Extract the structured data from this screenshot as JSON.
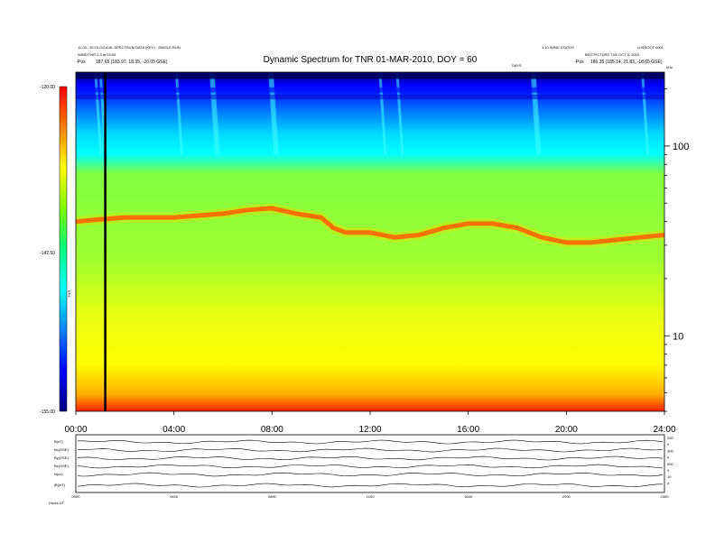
{
  "header": {
    "title": "Dynamic Spectrum for TNR 01-MAR-2010, DOY = 60",
    "left_line1": "11-03 - ECOLOGICAL SPECTRUM DATA (KEV) - SINGLE RUN",
    "left_line2": "WIND/TNR 2.3 at 03:00",
    "left_pos_label": "Pos",
    "left_pos_value": "187.65 (183.97, 18.35, -20.05 GSE)",
    "right_line1": "1.10 WIND STATUS",
    "right_line2": "BEG PICTURE TUE OCT 5, 2010",
    "right_corner": "LUSROOT 0001",
    "right_pos_label": "Pos",
    "right_pos_value": "186.35 (185.14, 21.83, -18.65 GSE)",
    "mid_small": "DAYS",
    "hz_label": "kHz"
  },
  "colorbar": {
    "top_label": "-120.00",
    "mid_label": "-142.50",
    "bottom_label": "-155.00",
    "unit_label": "TNR",
    "stops": [
      "#ff0000",
      "#ff8000",
      "#ffff00",
      "#80ff00",
      "#00ff80",
      "#00ffff",
      "#0080ff",
      "#0000ff",
      "#000080"
    ]
  },
  "chart_data": {
    "type": "heatmap",
    "title": "Dynamic Spectrum for TNR 01-MAR-2010, DOY = 60",
    "x_ticks": [
      "00:00",
      "04:00",
      "08:00",
      "12:00",
      "16:00",
      "20:00",
      "24:00"
    ],
    "x_range_hours": [
      0,
      24
    ],
    "y_scale": "log",
    "y_unit": "kHz",
    "y_ticks": [
      100,
      10
    ],
    "y_range_khz": [
      4,
      245
    ],
    "color_range_db": [
      -155.0,
      -120.0
    ],
    "plasma_line_khz_by_hour": {
      "hours": [
        0,
        1,
        2,
        3,
        4,
        5,
        6,
        7,
        8,
        9,
        10,
        10.5,
        11,
        12,
        13,
        14,
        15,
        16,
        17,
        18,
        19,
        20,
        21,
        22,
        23,
        24
      ],
      "khz": [
        40,
        41,
        42,
        42,
        42,
        43,
        44,
        46,
        47,
        44,
        42,
        37,
        35,
        35,
        33,
        34,
        37,
        39,
        39,
        37,
        33,
        31,
        31,
        32,
        33,
        34
      ]
    },
    "marker_hour": 1.2,
    "grid": false
  },
  "bottom_panel": {
    "row_labels": [
      "B(nT)",
      "Bx(GSE)",
      "By(GSE)",
      "Bz(GSE)",
      "N(cc)",
      "|B|(nT)"
    ],
    "right_ticks": [
      "250",
      "0",
      "300",
      "0",
      "500",
      "0",
      "10",
      "0"
    ],
    "x_ticks": [
      "0000",
      "0400",
      "0800",
      "1200",
      "1600",
      "2000",
      "2400"
    ],
    "footer_label": "Hours",
    "footer_value": "UT",
    "footer_full": "Hours  UT"
  }
}
